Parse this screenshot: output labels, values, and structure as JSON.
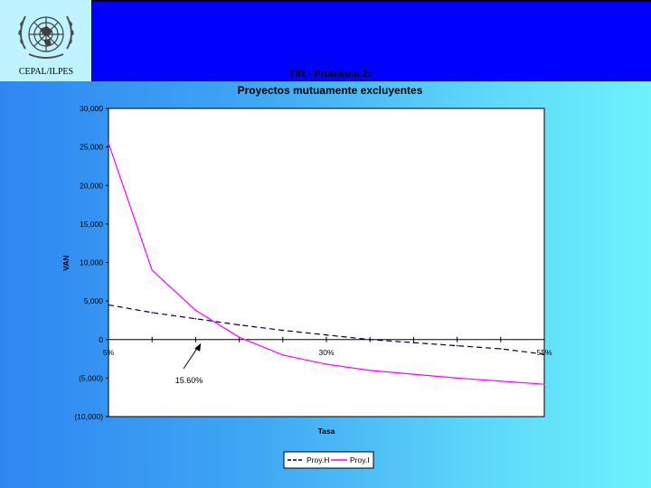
{
  "header": {
    "org_label": "CEPAL/ILPES",
    "logo_icon": "un-emblem-icon",
    "band_color": "#0000ff"
  },
  "chart_data": {
    "type": "line",
    "title": "TIR - Problema 2:",
    "subtitle": "Proyectos mutuamente excluyentes",
    "xlabel": "Tasa",
    "ylabel": "VAN",
    "x": [
      5,
      10,
      15,
      20,
      25,
      30,
      35,
      40,
      45,
      50,
      55
    ],
    "x_tick_labels": [
      {
        "x": 5,
        "label": "5%"
      },
      {
        "x": 30,
        "label": "30%"
      },
      {
        "x": 55,
        "label": "55%"
      }
    ],
    "xlim": [
      5,
      55
    ],
    "ylim": [
      -10000,
      30000
    ],
    "y_ticks": [
      {
        "value": 30000,
        "label": "30,000"
      },
      {
        "value": 25000,
        "label": "25,000"
      },
      {
        "value": 20000,
        "label": "20,000"
      },
      {
        "value": 15000,
        "label": "15,000"
      },
      {
        "value": 10000,
        "label": "10,000"
      },
      {
        "value": 5000,
        "label": "5,000"
      },
      {
        "value": 0,
        "label": "0"
      },
      {
        "value": -5000,
        "label": "(5,000)"
      },
      {
        "value": -10000,
        "label": "(10,000)"
      }
    ],
    "series": [
      {
        "name": "Proy.H",
        "color": "#000040",
        "dash": "dashed",
        "values": [
          4500,
          3500,
          2700,
          1900,
          1200,
          600,
          0,
          -400,
          -800,
          -1200,
          -1900
        ]
      },
      {
        "name": "Proy.I",
        "color": "#ff00ff",
        "dash": "solid",
        "values": [
          25500,
          9000,
          3800,
          300,
          -2000,
          -3200,
          -4000,
          -4500,
          -5000,
          -5400,
          -5800
        ]
      }
    ],
    "annotation": {
      "text": "15.60%",
      "x": 15.6,
      "y": 0
    },
    "grid": false,
    "legend_position": "bottom-center"
  }
}
